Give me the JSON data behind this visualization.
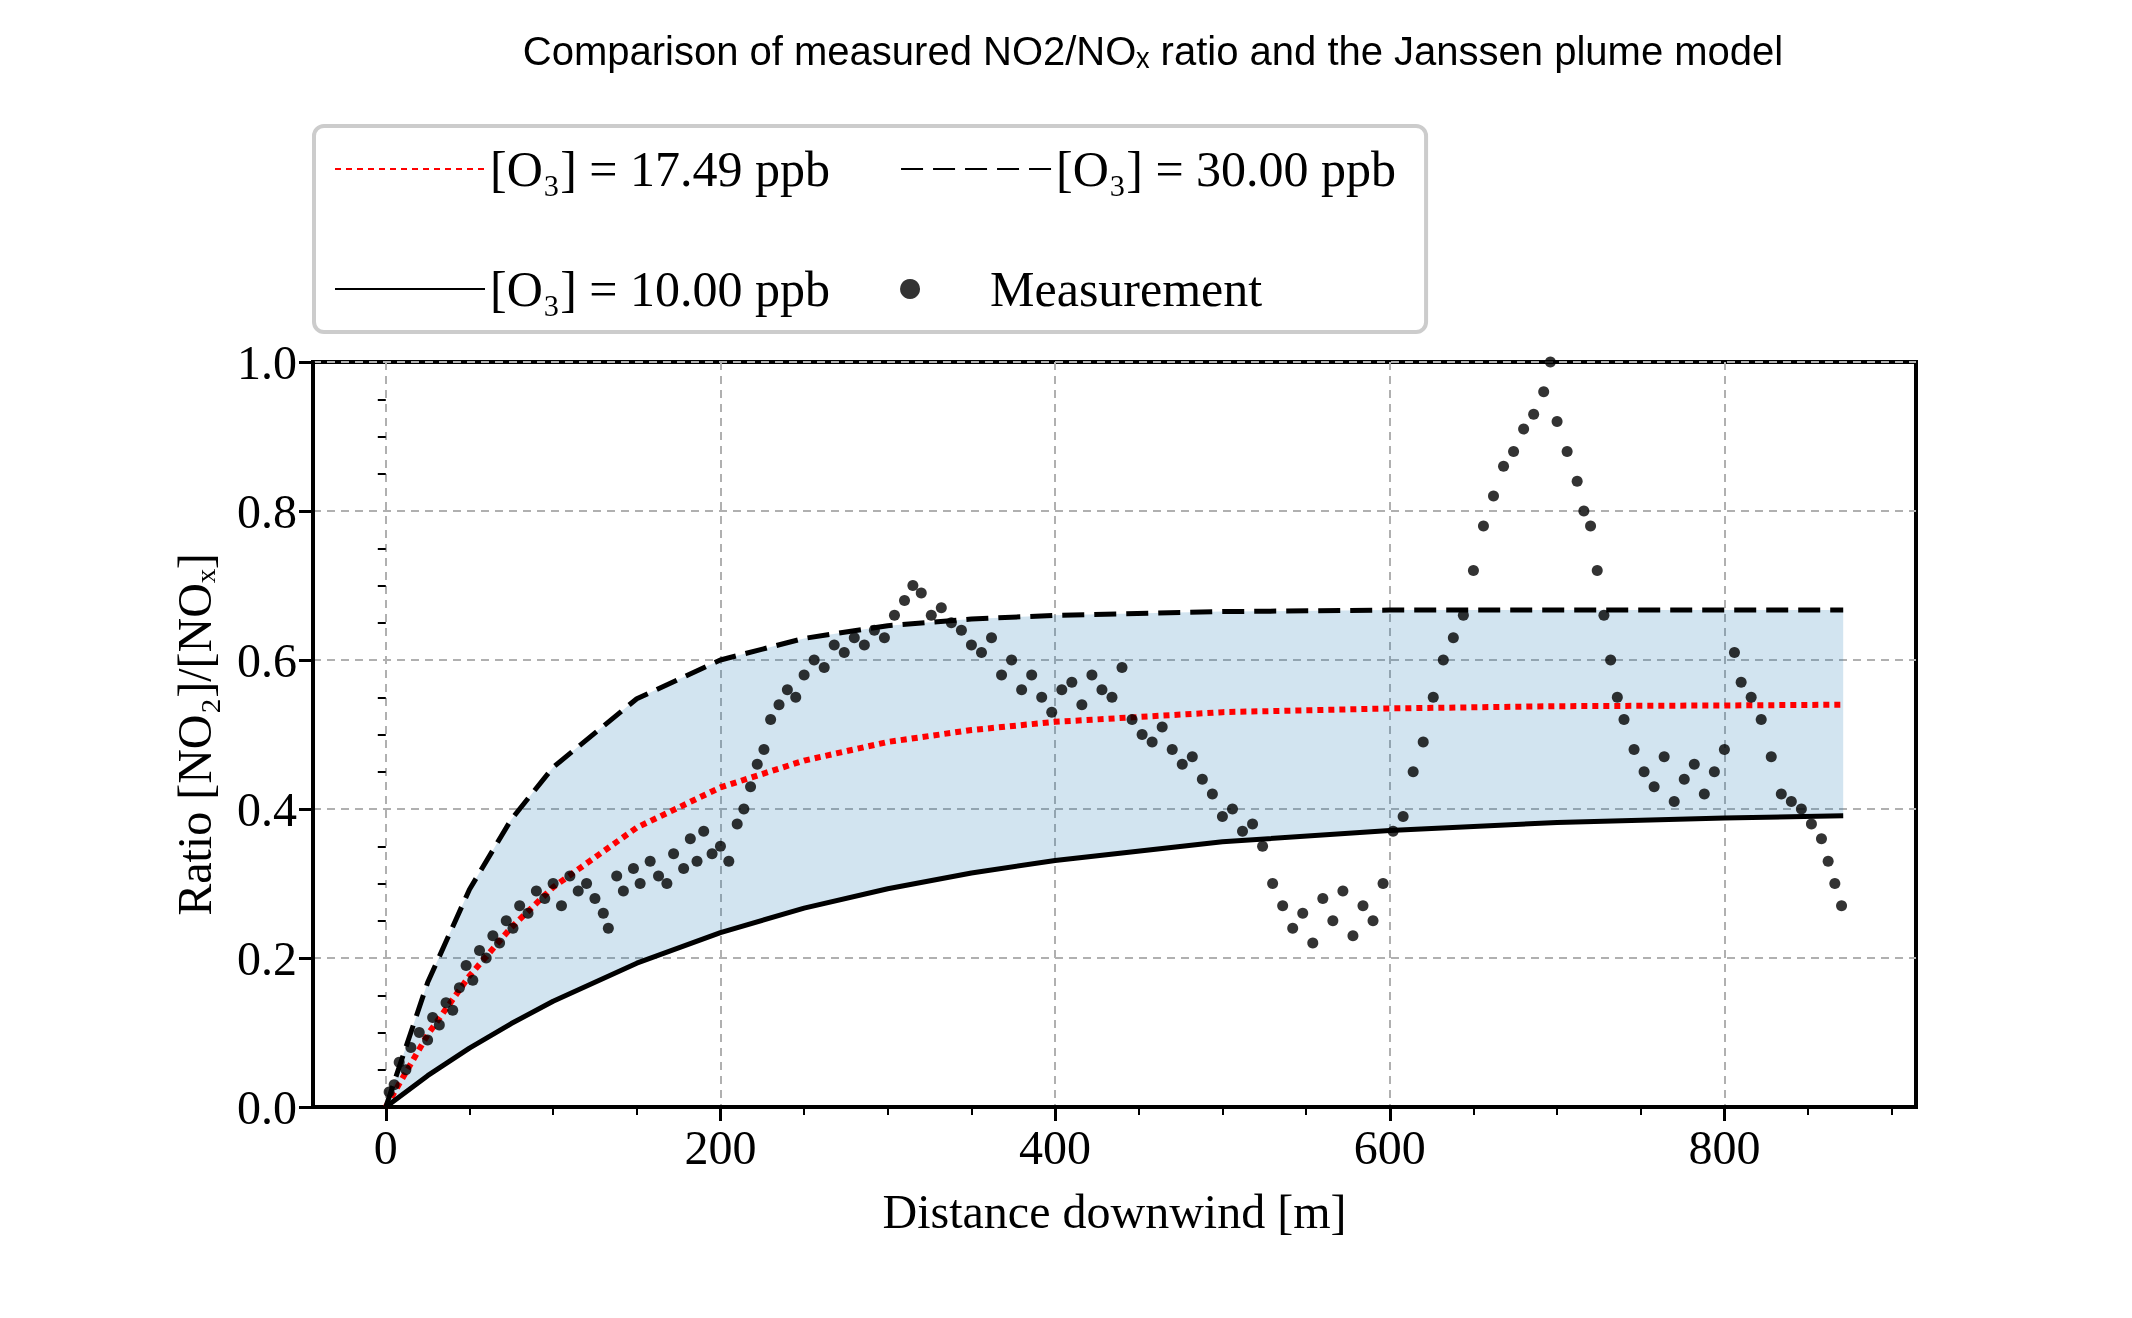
{
  "chart_data": {
    "type": "line",
    "title": "Comparison of measured NO2/NOₓ ratio and the Janssen plume model",
    "xlabel": "Distance downwind [m]",
    "ylabel": "Ratio [NO₂]/[NOₓ]",
    "xlim": [
      -43.5,
      914.5
    ],
    "xticks": [
      0,
      {
        "value": 50,
        "label": null
      },
      {
        "value": 100,
        "label": null
      },
      {
        "value": 150,
        "label": null
      },
      200,
      {
        "value": 250,
        "label": null
      },
      {
        "value": 300,
        "label": null
      },
      {
        "value": 350,
        "label": null
      },
      400,
      {
        "value": 450,
        "label": null
      },
      {
        "value": 500,
        "label": null
      },
      {
        "value": 550,
        "label": null
      },
      600,
      {
        "value": 650,
        "label": null
      },
      {
        "value": 700,
        "label": null
      },
      {
        "value": 750,
        "label": null
      },
      800,
      {
        "value": 850,
        "label": null
      },
      {
        "value": 900,
        "label": null
      }
    ],
    "ylim": [
      0,
      1
    ],
    "yticks": [
      {
        "value": 0,
        "label": "0.0"
      },
      {
        "value": 0.05,
        "label": null
      },
      {
        "value": 0.1,
        "label": null
      },
      {
        "value": 0.15,
        "label": null
      },
      {
        "value": 0.2,
        "label": "0.2"
      },
      {
        "value": 0.25,
        "label": null
      },
      {
        "value": 0.3,
        "label": null
      },
      {
        "value": 0.35,
        "label": null
      },
      {
        "value": 0.4,
        "label": "0.4"
      },
      {
        "value": 0.45,
        "label": null
      },
      {
        "value": 0.5,
        "label": null
      },
      {
        "value": 0.55,
        "label": null
      },
      {
        "value": 0.6,
        "label": "0.6"
      },
      {
        "value": 0.65,
        "label": null
      },
      {
        "value": 0.7,
        "label": null
      },
      {
        "value": 0.75,
        "label": null
      },
      {
        "value": 0.8,
        "label": "0.8"
      },
      {
        "value": 0.85,
        "label": null
      },
      {
        "value": 0.9,
        "label": null
      },
      {
        "value": 0.95,
        "label": null
      },
      {
        "value": 1,
        "label": "1.0"
      }
    ],
    "grid": true,
    "legend": "top",
    "series": [
      {
        "name": "[O₃] = 17.49 ppb",
        "line_style": "dotted",
        "color": "#ff0000",
        "x": [
          0,
          25,
          50,
          75,
          100,
          150,
          200,
          250,
          300,
          350,
          400,
          500,
          600,
          700,
          800,
          871
        ],
        "values": [
          0,
          0.097,
          0.176,
          0.241,
          0.295,
          0.375,
          0.429,
          0.465,
          0.49,
          0.506,
          0.517,
          0.53,
          0.535,
          0.538,
          0.539,
          0.54
        ],
        "lower": [
          0,
          0.042,
          0.079,
          0.112,
          0.142,
          0.193,
          0.234,
          0.267,
          0.293,
          0.314,
          0.331,
          0.356,
          0.371,
          0.382,
          0.388,
          0.391
        ],
        "upper": [
          0,
          0.167,
          0.292,
          0.386,
          0.456,
          0.548,
          0.6,
          0.629,
          0.646,
          0.655,
          0.66,
          0.665,
          0.667,
          0.667,
          0.667,
          0.667
        ]
      },
      {
        "name": "[O₃] = 10.00 ppb",
        "line_style": "solid",
        "color": "#000000",
        "x": [
          0,
          25,
          50,
          75,
          100,
          150,
          200,
          250,
          300,
          350,
          400,
          500,
          600,
          700,
          800,
          871
        ],
        "values": [
          0,
          0.042,
          0.079,
          0.112,
          0.142,
          0.193,
          0.234,
          0.267,
          0.293,
          0.314,
          0.331,
          0.356,
          0.371,
          0.382,
          0.388,
          0.391
        ]
      },
      {
        "name": "[O₃] = 30.00 ppb",
        "line_style": "dashed",
        "color": "#000000",
        "x": [
          0,
          25,
          50,
          75,
          100,
          150,
          200,
          250,
          300,
          350,
          400,
          500,
          600,
          700,
          800,
          871
        ],
        "values": [
          0,
          0.167,
          0.292,
          0.386,
          0.456,
          0.548,
          0.6,
          0.629,
          0.646,
          0.655,
          0.66,
          0.665,
          0.667,
          0.667,
          0.667,
          0.667
        ]
      },
      {
        "name": "Measurement",
        "type": "scatter",
        "marker": "circle",
        "color": "#000000",
        "x": [
          2,
          5,
          8,
          12,
          15,
          20,
          25,
          28,
          32,
          36,
          40,
          44,
          48,
          52,
          56,
          60,
          64,
          68,
          72,
          76,
          80,
          85,
          90,
          95,
          100,
          105,
          110,
          115,
          120,
          125,
          130,
          133,
          138,
          142,
          148,
          152,
          158,
          163,
          168,
          172,
          178,
          182,
          186,
          190,
          195,
          200,
          205,
          210,
          214,
          218,
          222,
          226,
          230,
          235,
          240,
          245,
          250,
          256,
          262,
          268,
          274,
          280,
          286,
          292,
          298,
          304,
          310,
          315,
          320,
          326,
          332,
          338,
          344,
          350,
          356,
          362,
          368,
          374,
          380,
          386,
          392,
          398,
          404,
          410,
          416,
          422,
          428,
          434,
          440,
          446,
          452,
          458,
          464,
          470,
          476,
          482,
          488,
          494,
          500,
          506,
          512,
          518,
          524,
          530,
          536,
          542,
          548,
          554,
          560,
          566,
          572,
          578,
          584,
          590,
          596,
          602,
          608,
          614,
          620,
          626,
          632,
          638,
          644,
          650,
          656,
          662,
          668,
          674,
          680,
          686,
          692,
          696,
          700,
          706,
          712,
          716,
          720,
          724,
          728,
          732,
          736,
          740,
          746,
          752,
          758,
          764,
          770,
          776,
          782,
          788,
          794,
          800,
          806,
          810,
          816,
          822,
          828,
          834,
          840,
          846,
          852,
          858,
          862,
          866,
          870
        ],
        "values": [
          0.02,
          0.03,
          0.06,
          0.05,
          0.08,
          0.1,
          0.09,
          0.12,
          0.11,
          0.14,
          0.13,
          0.16,
          0.19,
          0.17,
          0.21,
          0.2,
          0.23,
          0.22,
          0.25,
          0.24,
          0.27,
          0.26,
          0.29,
          0.28,
          0.3,
          0.27,
          0.31,
          0.29,
          0.3,
          0.28,
          0.26,
          0.24,
          0.31,
          0.29,
          0.32,
          0.3,
          0.33,
          0.31,
          0.3,
          0.34,
          0.32,
          0.36,
          0.33,
          0.37,
          0.34,
          0.35,
          0.33,
          0.38,
          0.4,
          0.43,
          0.46,
          0.48,
          0.52,
          0.54,
          0.56,
          0.55,
          0.58,
          0.6,
          0.59,
          0.62,
          0.61,
          0.63,
          0.62,
          0.64,
          0.63,
          0.66,
          0.68,
          0.7,
          0.69,
          0.66,
          0.67,
          0.65,
          0.64,
          0.62,
          0.61,
          0.63,
          0.58,
          0.6,
          0.56,
          0.58,
          0.55,
          0.53,
          0.56,
          0.57,
          0.54,
          0.58,
          0.56,
          0.55,
          0.59,
          0.52,
          0.5,
          0.49,
          0.51,
          0.48,
          0.46,
          0.47,
          0.44,
          0.42,
          0.39,
          0.4,
          0.37,
          0.38,
          0.35,
          0.3,
          0.27,
          0.24,
          0.26,
          0.22,
          0.28,
          0.25,
          0.29,
          0.23,
          0.27,
          0.25,
          0.3,
          0.37,
          0.39,
          0.45,
          0.49,
          0.55,
          0.6,
          0.63,
          0.66,
          0.72,
          0.78,
          0.82,
          0.86,
          0.88,
          0.91,
          0.93,
          0.96,
          1,
          0.92,
          0.88,
          0.84,
          0.8,
          0.78,
          0.72,
          0.66,
          0.6,
          0.55,
          0.52,
          0.48,
          0.45,
          0.43,
          0.47,
          0.41,
          0.44,
          0.46,
          0.42,
          0.45,
          0.48,
          0.61,
          0.57,
          0.55,
          0.52,
          0.47,
          0.42,
          0.41,
          0.4,
          0.38,
          0.36,
          0.33,
          0.3,
          0.27
        ]
      }
    ]
  }
}
